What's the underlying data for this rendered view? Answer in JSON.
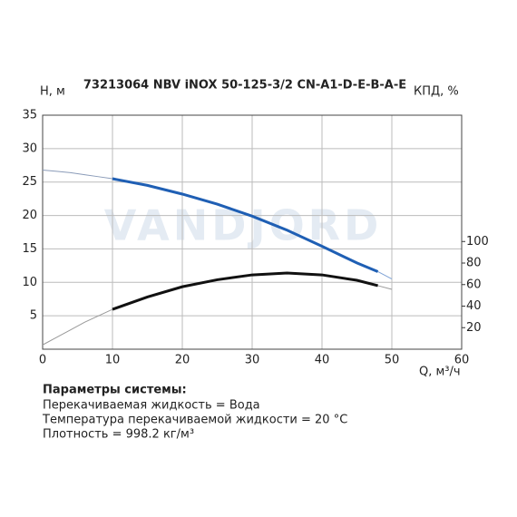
{
  "chart_data": {
    "type": "line",
    "title": "73213064 NBV iNOX 50-125-3/2 CN-A1-D-E-B-A-E",
    "y_label": "H, м",
    "y2_label": "КПД, %",
    "x_label": "Q, м³/ч",
    "watermark": "VANDJORD",
    "xlim": [
      0,
      60
    ],
    "xticks": [
      0,
      10,
      20,
      30,
      40,
      50,
      60
    ],
    "ylim": [
      0,
      35
    ],
    "yticks": [
      5,
      10,
      15,
      20,
      25,
      30,
      35
    ],
    "y2lim": [
      0,
      217.3
    ],
    "y2ticks": [
      20,
      40,
      60,
      80,
      100
    ],
    "grid": true,
    "series": [
      {
        "color": "#8a9bb8",
        "style": "thin",
        "x": [
          0,
          2,
          4,
          6,
          8,
          10
        ],
        "values": [
          26.8,
          26.6,
          26.4,
          26.1,
          25.8,
          25.5
        ]
      },
      {
        "color": "#1f5fb4",
        "style": "thick",
        "x": [
          10,
          15,
          20,
          25,
          30,
          35,
          40,
          45,
          48
        ],
        "values": [
          25.5,
          24.5,
          23.2,
          21.7,
          19.9,
          17.8,
          15.4,
          12.9,
          11.6
        ]
      },
      {
        "color": "#7fa3d6",
        "style": "thin",
        "x": [
          48,
          50
        ],
        "values": [
          11.6,
          10.5
        ]
      },
      {
        "color": "#999999",
        "style": "thin",
        "axis": "y2",
        "x": [
          0,
          2,
          4,
          6,
          8,
          10
        ],
        "values": [
          4,
          11,
          18,
          25,
          31,
          37
        ]
      },
      {
        "color": "#111111",
        "style": "thick",
        "axis": "y2",
        "x": [
          10,
          15,
          20,
          25,
          30,
          35,
          40,
          45,
          48
        ],
        "values": [
          37,
          48.5,
          58,
          64.5,
          69,
          70.7,
          69,
          64,
          59
        ]
      },
      {
        "color": "#999999",
        "style": "thin",
        "axis": "y2",
        "x": [
          48,
          50
        ],
        "values": [
          59,
          55.6
        ]
      }
    ]
  },
  "notes": {
    "heading": "Параметры системы:",
    "lines": [
      "Перекачиваемая жидкость = Вода",
      "Температура перекачиваемой жидкости = 20 °C",
      "Плотность = 998.2 кг/м³"
    ]
  }
}
